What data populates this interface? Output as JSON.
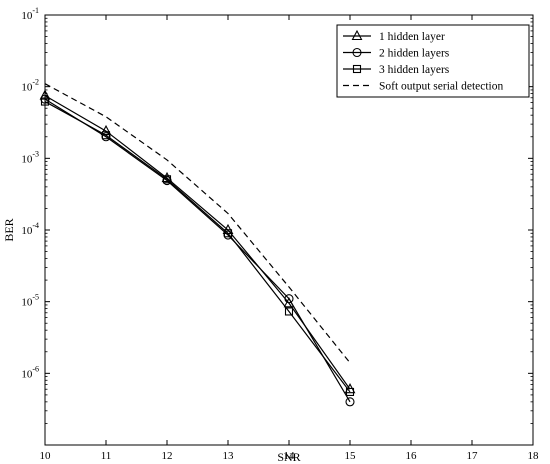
{
  "chart_data": {
    "type": "line",
    "title": "",
    "xlabel": "SNR",
    "ylabel": "BER",
    "xlim": [
      10,
      18
    ],
    "ylim": [
      1e-07,
      0.1
    ],
    "yscale": "log",
    "grid": false,
    "legend_position": "top-right",
    "x_ticks": [
      "10",
      "11",
      "12",
      "13",
      "14",
      "15",
      "16",
      "17",
      "18"
    ],
    "y_ticks": [
      {
        "base": "10",
        "exp": "-1",
        "value": 0.1
      },
      {
        "base": "10",
        "exp": "-2",
        "value": 0.01
      },
      {
        "base": "10",
        "exp": "-3",
        "value": 0.001
      },
      {
        "base": "10",
        "exp": "-4",
        "value": 0.0001
      },
      {
        "base": "10",
        "exp": "-5",
        "value": 1e-05
      },
      {
        "base": "10",
        "exp": "-6",
        "value": 1e-06
      }
    ],
    "series": [
      {
        "name": "1 hidden layer",
        "marker": "triangle",
        "dash": "solid",
        "x": [
          10,
          11,
          12,
          13,
          14,
          15
        ],
        "y": [
          0.0075,
          0.0024,
          0.00053,
          0.0001,
          9.5e-06,
          6e-07
        ]
      },
      {
        "name": "2 hidden layers",
        "marker": "circle",
        "dash": "solid",
        "x": [
          10,
          11,
          12,
          13,
          14,
          15
        ],
        "y": [
          0.0067,
          0.002,
          0.00049,
          8.5e-05,
          1.1e-05,
          4e-07
        ]
      },
      {
        "name": "3 hidden layers",
        "marker": "square",
        "dash": "solid",
        "x": [
          10,
          11,
          12,
          13,
          14,
          15
        ],
        "y": [
          0.0062,
          0.0021,
          0.00051,
          9e-05,
          7.3e-06,
          5.5e-07
        ]
      },
      {
        "name": "Soft output serial detection",
        "marker": "none",
        "dash": "dashed",
        "x": [
          10,
          11,
          12,
          13,
          14,
          15
        ],
        "y": [
          0.011,
          0.0038,
          0.00095,
          0.00017,
          1.6e-05,
          1.4e-06
        ]
      }
    ]
  }
}
